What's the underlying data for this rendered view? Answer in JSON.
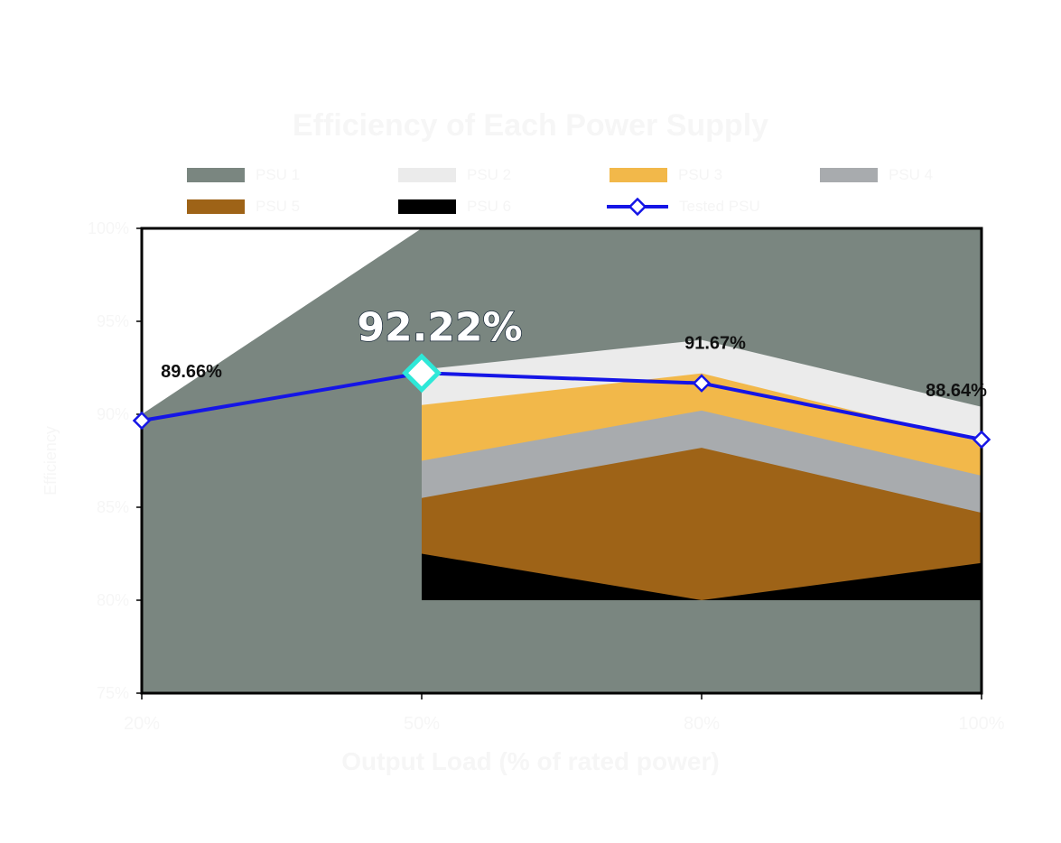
{
  "chart_data": {
    "type": "area",
    "title": "Efficiency of Each Power Supply",
    "xlabel": "Output Load (% of rated power)",
    "ylabel": "Efficiency",
    "categories": [
      "20%",
      "50%",
      "80%",
      "100%"
    ],
    "ylim": [
      75,
      100
    ],
    "yticks": [
      "75%",
      "80%",
      "85%",
      "90%",
      "95%",
      "100%"
    ],
    "series": [
      {
        "name": "PSU 1",
        "type": "area",
        "color": "#7a8680",
        "values": [
          90.0,
          100.0,
          100.0,
          100.0
        ]
      },
      {
        "name": "PSU 2",
        "type": "area",
        "color": "#ebebeb",
        "values": [
          null,
          92.4,
          94.0,
          90.4
        ]
      },
      {
        "name": "PSU 3",
        "type": "area",
        "color": "#f2b84a",
        "values": [
          null,
          90.5,
          92.2,
          88.5
        ]
      },
      {
        "name": "PSU 4",
        "type": "area",
        "color": "#a8abae",
        "values": [
          null,
          87.5,
          90.2,
          86.7
        ]
      },
      {
        "name": "PSU 5",
        "type": "area",
        "color": "#9e6317",
        "values": [
          null,
          85.5,
          88.2,
          84.7
        ]
      },
      {
        "name": "PSU 6",
        "type": "area",
        "color": "#000000",
        "values": [
          null,
          82.5,
          80.0,
          82.0
        ]
      },
      {
        "name": "Tested PSU",
        "type": "line",
        "color": "#1515e6",
        "values": [
          89.66,
          92.22,
          91.67,
          88.64
        ]
      }
    ],
    "point_labels": [
      "89.66%",
      "92.22%",
      "91.67%",
      "88.64%"
    ],
    "highlight_index": 1,
    "highlight_color": "#2ee8d8"
  }
}
